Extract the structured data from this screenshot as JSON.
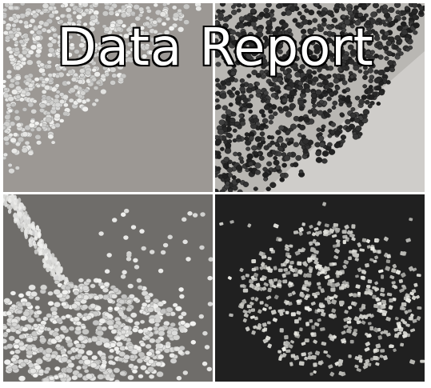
{
  "title": "Data Report",
  "panels": [
    {
      "name": "white-pellets-scattered",
      "pellet_color": "#eeeeec",
      "background_color": "#9c9894"
    },
    {
      "name": "black-pellets-pile",
      "pellet_color": "#2a2a2a",
      "background_color": "#b9b7b3"
    },
    {
      "name": "white-pellets-pouring",
      "pellet_color": "#f4f4f2",
      "background_color": "#6f6d6a"
    },
    {
      "name": "translucent-granules-heap",
      "pellet_color": "#ecece6",
      "background_color": "#202020"
    }
  ]
}
